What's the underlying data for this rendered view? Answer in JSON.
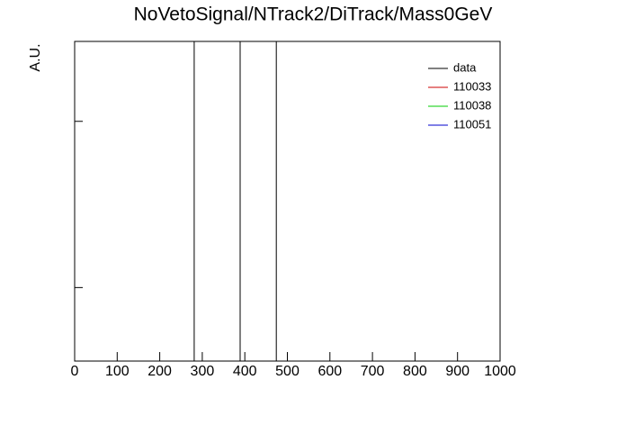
{
  "chart_data": {
    "type": "line",
    "title": "NoVetoSignal/NTrack2/DiTrack/Mass0GeV",
    "y_label": "A.U.",
    "x": [
      281,
      389,
      474
    ],
    "series": [
      {
        "name": "data",
        "color": "#000000",
        "values": [
          1,
          1,
          1
        ]
      },
      {
        "name": "110033",
        "color": "#cc0000",
        "values": [
          0,
          0,
          0
        ]
      },
      {
        "name": "110038",
        "color": "#00cc00",
        "values": [
          0,
          0,
          0
        ]
      },
      {
        "name": "110051",
        "color": "#0000cc",
        "values": [
          0,
          0,
          0
        ]
      }
    ],
    "xlim": [
      0,
      1000
    ],
    "xticks": [
      0,
      100,
      200,
      300,
      400,
      500,
      600,
      700,
      800,
      900,
      1000
    ],
    "ylim": [
      0,
      1
    ],
    "yticks": [
      0.23,
      0.75
    ],
    "legend": "upper right"
  }
}
